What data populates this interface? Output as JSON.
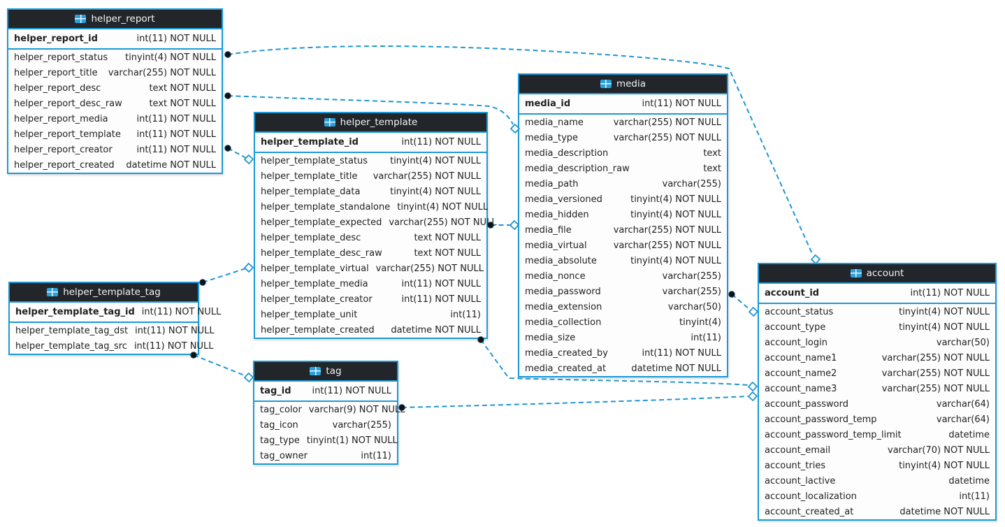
{
  "colors": {
    "accent_blue": "#1b9ad6",
    "header_bg": "#22262a",
    "header_text": "#f4f4f4",
    "body_bg": "#fdfdfd",
    "field_text": "#212121",
    "connector": "#1e96d4"
  },
  "diagram": {
    "tables": [
      {
        "name": "helper_report",
        "icon": "table-grid-icon",
        "primary_key": {
          "name": "helper_report_id",
          "type": "int(11) NOT NULL"
        },
        "fields": [
          {
            "name": "helper_report_status",
            "type": "tinyint(4) NOT NULL"
          },
          {
            "name": "helper_report_title",
            "type": "varchar(255) NOT NULL"
          },
          {
            "name": "helper_report_desc",
            "type": "text NOT NULL"
          },
          {
            "name": "helper_report_desc_raw",
            "type": "text NOT NULL"
          },
          {
            "name": "helper_report_media",
            "type": "int(11) NOT NULL"
          },
          {
            "name": "helper_report_template",
            "type": "int(11) NOT NULL"
          },
          {
            "name": "helper_report_creator",
            "type": "int(11) NOT NULL"
          },
          {
            "name": "helper_report_created",
            "type": "datetime NOT NULL"
          }
        ]
      },
      {
        "name": "helper_template",
        "icon": "table-grid-icon",
        "primary_key": {
          "name": "helper_template_id",
          "type": "int(11) NOT NULL"
        },
        "fields": [
          {
            "name": "helper_template_status",
            "type": "tinyint(4) NOT NULL"
          },
          {
            "name": "helper_template_title",
            "type": "varchar(255) NOT NULL"
          },
          {
            "name": "helper_template_data",
            "type": "tinyint(4) NOT NULL"
          },
          {
            "name": "helper_template_standalone",
            "type": "tinyint(4) NOT NULL"
          },
          {
            "name": "helper_template_expected",
            "type": "varchar(255) NOT NULL"
          },
          {
            "name": "helper_template_desc",
            "type": "text NOT NULL"
          },
          {
            "name": "helper_template_desc_raw",
            "type": "text NOT NULL"
          },
          {
            "name": "helper_template_virtual",
            "type": "varchar(255) NOT NULL"
          },
          {
            "name": "helper_template_media",
            "type": "int(11) NOT NULL"
          },
          {
            "name": "helper_template_creator",
            "type": "int(11) NOT NULL"
          },
          {
            "name": "helper_template_unit",
            "type": "int(11)"
          },
          {
            "name": "helper_template_created",
            "type": "datetime NOT NULL"
          }
        ]
      },
      {
        "name": "helper_template_tag",
        "icon": "table-grid-icon",
        "primary_key": {
          "name": "helper_template_tag_id",
          "type": "int(11) NOT NULL"
        },
        "fields": [
          {
            "name": "helper_template_tag_dst",
            "type": "int(11) NOT NULL"
          },
          {
            "name": "helper_template_tag_src",
            "type": "int(11) NOT NULL"
          }
        ]
      },
      {
        "name": "tag",
        "icon": "table-grid-icon",
        "primary_key": {
          "name": "tag_id",
          "type": "int(11) NOT NULL"
        },
        "fields": [
          {
            "name": "tag_color",
            "type": "varchar(9) NOT NULL"
          },
          {
            "name": "tag_icon",
            "type": "varchar(255)"
          },
          {
            "name": "tag_type",
            "type": "tinyint(1) NOT NULL"
          },
          {
            "name": "tag_owner",
            "type": "int(11)"
          }
        ]
      },
      {
        "name": "media",
        "icon": "table-grid-icon",
        "primary_key": {
          "name": "media_id",
          "type": "int(11) NOT NULL"
        },
        "fields": [
          {
            "name": "media_name",
            "type": "varchar(255) NOT NULL"
          },
          {
            "name": "media_type",
            "type": "varchar(255) NOT NULL"
          },
          {
            "name": "media_description",
            "type": "text"
          },
          {
            "name": "media_description_raw",
            "type": "text"
          },
          {
            "name": "media_path",
            "type": "varchar(255)"
          },
          {
            "name": "media_versioned",
            "type": "tinyint(4) NOT NULL"
          },
          {
            "name": "media_hidden",
            "type": "tinyint(4) NOT NULL"
          },
          {
            "name": "media_file",
            "type": "varchar(255) NOT NULL"
          },
          {
            "name": "media_virtual",
            "type": "varchar(255) NOT NULL"
          },
          {
            "name": "media_absolute",
            "type": "tinyint(4) NOT NULL"
          },
          {
            "name": "media_nonce",
            "type": "varchar(255)"
          },
          {
            "name": "media_password",
            "type": "varchar(255)"
          },
          {
            "name": "media_extension",
            "type": "varchar(50)"
          },
          {
            "name": "media_collection",
            "type": "tinyint(4)"
          },
          {
            "name": "media_size",
            "type": "int(11)"
          },
          {
            "name": "media_created_by",
            "type": "int(11) NOT NULL"
          },
          {
            "name": "media_created_at",
            "type": "datetime NOT NULL"
          }
        ]
      },
      {
        "name": "account",
        "icon": "table-grid-icon",
        "primary_key": {
          "name": "account_id",
          "type": "int(11) NOT NULL"
        },
        "fields": [
          {
            "name": "account_status",
            "type": "tinyint(4) NOT NULL"
          },
          {
            "name": "account_type",
            "type": "tinyint(4) NOT NULL"
          },
          {
            "name": "account_login",
            "type": "varchar(50)"
          },
          {
            "name": "account_name1",
            "type": "varchar(255) NOT NULL"
          },
          {
            "name": "account_name2",
            "type": "varchar(255) NOT NULL"
          },
          {
            "name": "account_name3",
            "type": "varchar(255) NOT NULL"
          },
          {
            "name": "account_password",
            "type": "varchar(64)"
          },
          {
            "name": "account_password_temp",
            "type": "varchar(64)"
          },
          {
            "name": "account_password_temp_limit",
            "type": "datetime"
          },
          {
            "name": "account_email",
            "type": "varchar(70) NOT NULL"
          },
          {
            "name": "account_tries",
            "type": "tinyint(4) NOT NULL"
          },
          {
            "name": "account_lactive",
            "type": "datetime"
          },
          {
            "name": "account_localization",
            "type": "int(11)"
          },
          {
            "name": "account_created_at",
            "type": "datetime NOT NULL"
          }
        ]
      }
    ],
    "relationships": [
      {
        "from_table": "helper_report",
        "to_table": "account"
      },
      {
        "from_table": "helper_report",
        "to_table": "media"
      },
      {
        "from_table": "helper_report",
        "to_table": "helper_template"
      },
      {
        "from_table": "helper_template",
        "to_table": "media"
      },
      {
        "from_table": "helper_template",
        "to_table": "account"
      },
      {
        "from_table": "helper_template_tag",
        "to_table": "helper_template"
      },
      {
        "from_table": "helper_template_tag",
        "to_table": "tag"
      },
      {
        "from_table": "tag",
        "to_table": "account"
      },
      {
        "from_table": "media",
        "to_table": "account"
      }
    ]
  }
}
